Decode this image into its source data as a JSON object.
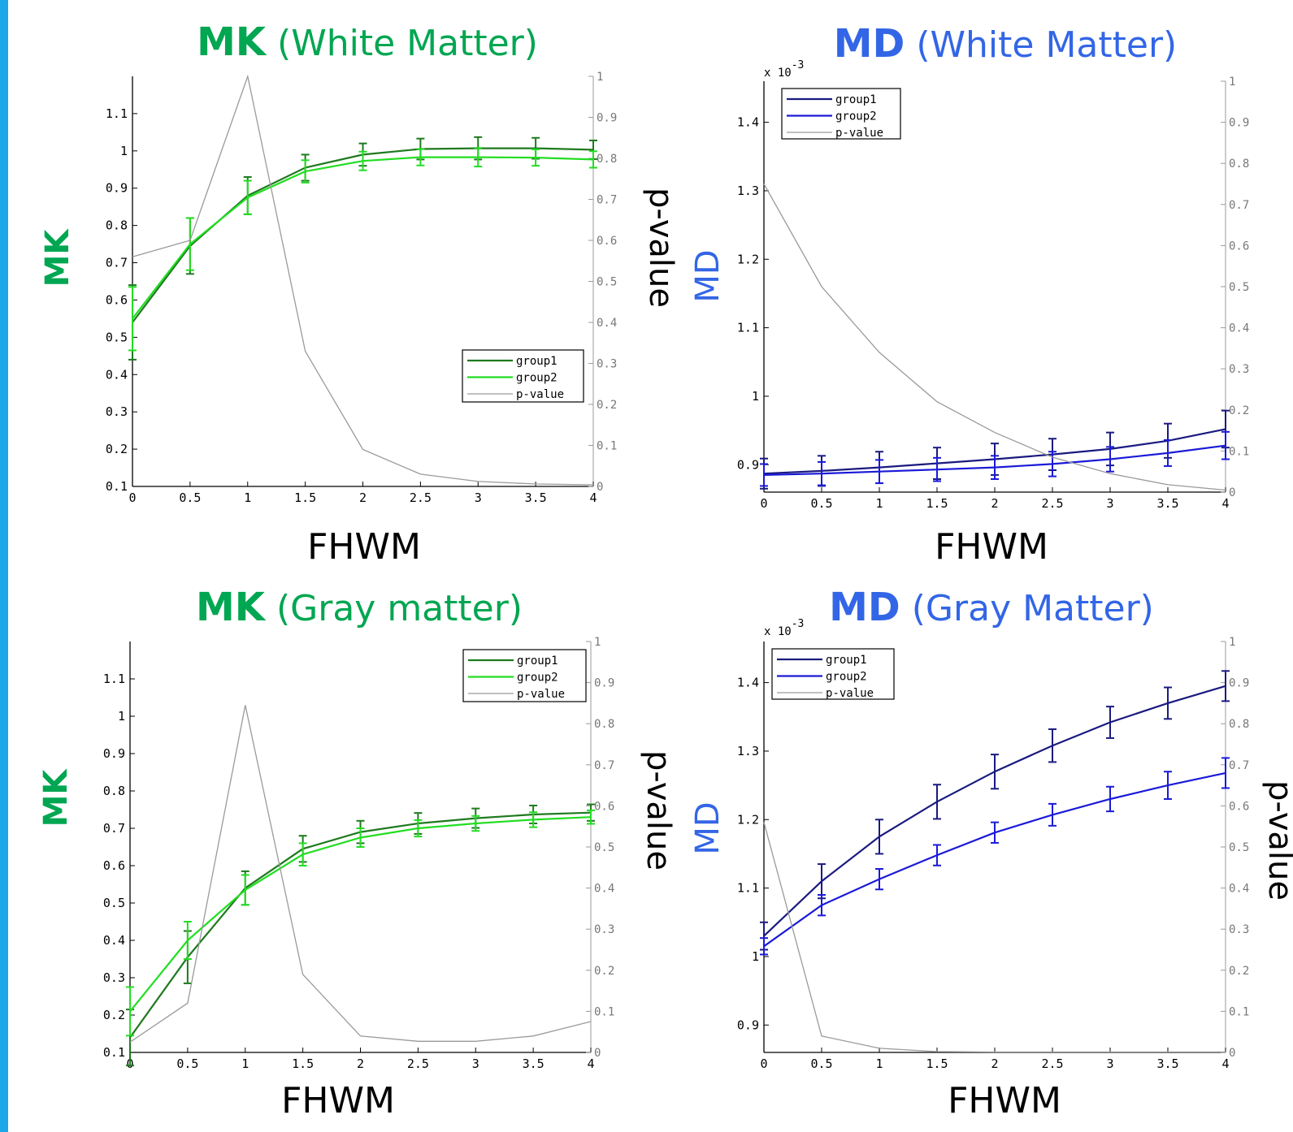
{
  "colors": {
    "green_title": "#00A651",
    "blue_title": "#3366E6",
    "mk_group1": "#1E7A1E",
    "mk_group2": "#22DD22",
    "md_group1": "#1A1A80",
    "md_group2": "#1A1AD8",
    "p_value": "#9A9A9A",
    "accent_bar": "#1BA8E8"
  },
  "chart_data": [
    {
      "id": "mk-white",
      "type": "line",
      "title_bold": "MK",
      "title_rest": "(White Matter)",
      "title_color": "green",
      "xlabel": "FHWM",
      "ylabel": "MK",
      "y2label": "p-value",
      "y_exponent": "",
      "x": [
        0,
        0.5,
        1,
        1.5,
        2,
        2.5,
        3,
        3.5,
        4
      ],
      "x_ticks": [
        "0",
        "0.5",
        "1",
        "1.5",
        "2",
        "2.5",
        "3",
        "3.5",
        "4"
      ],
      "ylim": [
        0.1,
        1.2
      ],
      "y_ticks": [
        0.1,
        0.2,
        0.3,
        0.4,
        0.5,
        0.6,
        0.7,
        0.8,
        0.9,
        1,
        1.1
      ],
      "y_tick_labels": [
        "0.1",
        "0.2",
        "0.3",
        "0.4",
        "0.5",
        "0.6",
        "0.7",
        "0.8",
        "0.9",
        "1",
        "1.1"
      ],
      "y2lim": [
        0,
        1
      ],
      "y2_ticks": [
        "0",
        "0.1",
        "0.2",
        "0.3",
        "0.4",
        "0.5",
        "0.6",
        "0.7",
        "0.8",
        "0.9",
        "1"
      ],
      "legend_position": "lower-right",
      "series": [
        {
          "name": "group1",
          "color_key": "mk_group1",
          "axis": "left",
          "values": [
            0.54,
            0.745,
            0.88,
            0.955,
            0.99,
            1.005,
            1.007,
            1.007,
            1.003
          ],
          "errors": [
            0.1,
            0.075,
            0.05,
            0.035,
            0.03,
            0.028,
            0.03,
            0.028,
            0.025
          ]
        },
        {
          "name": "group2",
          "color_key": "mk_group2",
          "axis": "left",
          "values": [
            0.55,
            0.75,
            0.875,
            0.945,
            0.973,
            0.983,
            0.983,
            0.982,
            0.977
          ],
          "errors": [
            0.085,
            0.07,
            0.045,
            0.03,
            0.025,
            0.022,
            0.025,
            0.022,
            0.022
          ]
        },
        {
          "name": "p-value",
          "color_key": "p_value",
          "axis": "right",
          "values": [
            0.56,
            0.6,
            1.0,
            0.33,
            0.09,
            0.03,
            0.012,
            0.006,
            0.004
          ]
        }
      ]
    },
    {
      "id": "md-white",
      "type": "line",
      "title_bold": "MD",
      "title_rest": "(White Matter)",
      "title_color": "blue",
      "xlabel": "FHWM",
      "ylabel": "MD",
      "y2label": "",
      "y_exponent": "-3",
      "x": [
        0,
        0.5,
        1,
        1.5,
        2,
        2.5,
        3,
        3.5,
        4
      ],
      "x_ticks": [
        "0",
        "0.5",
        "1",
        "1.5",
        "2",
        "2.5",
        "3",
        "3.5",
        "4"
      ],
      "ylim": [
        0.86,
        1.46
      ],
      "y_ticks": [
        0.9,
        1.0,
        1.1,
        1.2,
        1.3,
        1.4
      ],
      "y_tick_labels": [
        "0.9",
        "1",
        "1.1",
        "1.2",
        "1.3",
        "1.4"
      ],
      "y2lim": [
        0,
        1
      ],
      "y2_ticks": [
        "0",
        "0.1",
        "0.2",
        "0.3",
        "0.4",
        "0.5",
        "0.6",
        "0.7",
        "0.8",
        "0.9",
        "1"
      ],
      "legend_position": "top-left",
      "series": [
        {
          "name": "group1",
          "color_key": "md_group1",
          "axis": "left",
          "values": [
            0.887,
            0.891,
            0.896,
            0.902,
            0.908,
            0.915,
            0.923,
            0.935,
            0.952
          ],
          "errors": [
            0.022,
            0.022,
            0.023,
            0.023,
            0.023,
            0.023,
            0.024,
            0.025,
            0.027
          ]
        },
        {
          "name": "group2",
          "color_key": "md_group2",
          "axis": "left",
          "values": [
            0.885,
            0.887,
            0.89,
            0.893,
            0.896,
            0.901,
            0.908,
            0.917,
            0.928
          ],
          "errors": [
            0.016,
            0.017,
            0.017,
            0.017,
            0.017,
            0.018,
            0.018,
            0.019,
            0.02
          ]
        },
        {
          "name": "p-value",
          "color_key": "p_value",
          "axis": "right",
          "values": [
            0.75,
            0.5,
            0.34,
            0.22,
            0.145,
            0.085,
            0.045,
            0.018,
            0.005
          ]
        }
      ]
    },
    {
      "id": "mk-gray",
      "type": "line",
      "title_bold": "MK",
      "title_rest": "(Gray matter)",
      "title_color": "green",
      "xlabel": "FHWM",
      "ylabel": "MK",
      "y2label": "p-value",
      "y_exponent": "",
      "x": [
        0,
        0.5,
        1,
        1.5,
        2,
        2.5,
        3,
        3.5,
        4
      ],
      "x_ticks": [
        "0",
        "0.5",
        "1",
        "1.5",
        "2",
        "2.5",
        "3",
        "3.5",
        "4"
      ],
      "ylim": [
        0.1,
        1.2
      ],
      "y_ticks": [
        0.1,
        0.2,
        0.3,
        0.4,
        0.5,
        0.6,
        0.7,
        0.8,
        0.9,
        1,
        1.1
      ],
      "y_tick_labels": [
        "0.1",
        "0.2",
        "0.3",
        "0.4",
        "0.5",
        "0.6",
        "0.7",
        "0.8",
        "0.9",
        "1",
        "1.1"
      ],
      "y2lim": [
        0,
        1
      ],
      "y2_ticks": [
        "0",
        "0.1",
        "0.2",
        "0.3",
        "0.4",
        "0.5",
        "0.6",
        "0.7",
        "0.8",
        "0.9",
        "1"
      ],
      "legend_position": "top-right",
      "series": [
        {
          "name": "group1",
          "color_key": "mk_group1",
          "axis": "left",
          "values": [
            0.14,
            0.355,
            0.54,
            0.645,
            0.69,
            0.713,
            0.727,
            0.737,
            0.742
          ],
          "errors": [
            0.075,
            0.07,
            0.045,
            0.035,
            0.03,
            0.028,
            0.026,
            0.024,
            0.022
          ]
        },
        {
          "name": "group2",
          "color_key": "mk_group2",
          "axis": "left",
          "values": [
            0.21,
            0.4,
            0.535,
            0.63,
            0.675,
            0.7,
            0.713,
            0.723,
            0.73
          ],
          "errors": [
            0.065,
            0.05,
            0.04,
            0.03,
            0.025,
            0.022,
            0.02,
            0.02,
            0.018
          ]
        },
        {
          "name": "p-value",
          "color_key": "p_value",
          "axis": "right",
          "values": [
            0.025,
            0.12,
            0.845,
            0.19,
            0.04,
            0.027,
            0.027,
            0.04,
            0.075
          ]
        }
      ]
    },
    {
      "id": "md-gray",
      "type": "line",
      "title_bold": "MD",
      "title_rest": "(Gray Matter)",
      "title_color": "blue",
      "xlabel": "FHWM",
      "ylabel": "MD",
      "y2label": "p-value",
      "y_exponent": "-3",
      "x": [
        0,
        0.5,
        1,
        1.5,
        2,
        2.5,
        3,
        3.5,
        4
      ],
      "x_ticks": [
        "0",
        "0.5",
        "1",
        "1.5",
        "2",
        "2.5",
        "3",
        "3.5",
        "4"
      ],
      "ylim": [
        0.86,
        1.46
      ],
      "y_ticks": [
        0.9,
        1.0,
        1.1,
        1.2,
        1.3,
        1.4
      ],
      "y_tick_labels": [
        "0.9",
        "1",
        "1.1",
        "1.2",
        "1.3",
        "1.4"
      ],
      "y2lim": [
        0,
        1
      ],
      "y2_ticks": [
        "0",
        "0.1",
        "0.2",
        "0.3",
        "0.4",
        "0.5",
        "0.6",
        "0.7",
        "0.8",
        "0.9",
        "1"
      ],
      "legend_position": "top-left",
      "series": [
        {
          "name": "group1",
          "color_key": "md_group1",
          "axis": "left",
          "values": [
            1.03,
            1.11,
            1.175,
            1.226,
            1.27,
            1.308,
            1.342,
            1.37,
            1.395
          ],
          "errors": [
            0.02,
            0.025,
            0.025,
            0.025,
            0.025,
            0.024,
            0.023,
            0.023,
            0.022
          ]
        },
        {
          "name": "group2",
          "color_key": "md_group2",
          "axis": "left",
          "values": [
            1.015,
            1.075,
            1.113,
            1.148,
            1.181,
            1.207,
            1.23,
            1.25,
            1.268
          ],
          "errors": [
            0.012,
            0.015,
            0.015,
            0.015,
            0.015,
            0.016,
            0.018,
            0.02,
            0.022
          ]
        },
        {
          "name": "p-value",
          "color_key": "p_value",
          "axis": "right",
          "values": [
            0.56,
            0.04,
            0.01,
            0.002,
            0.001,
            0.001,
            0.001,
            0.001,
            0.001
          ]
        }
      ]
    }
  ]
}
